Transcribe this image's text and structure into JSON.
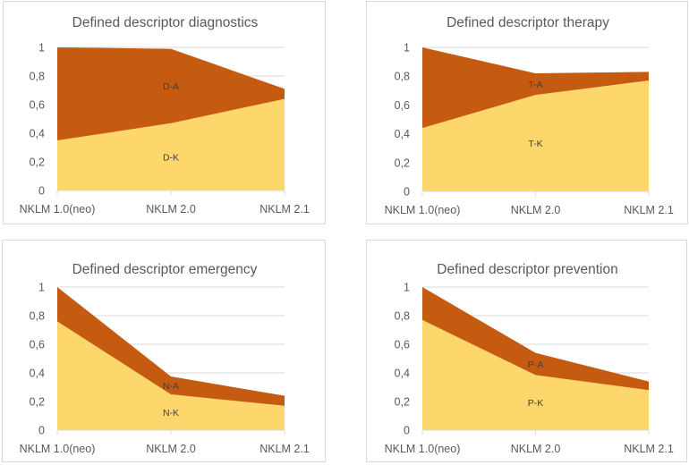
{
  "colors": {
    "lower": "#FDD76B",
    "upper": "#C55A11",
    "grid": "#D9D9D9",
    "text": "#595959"
  },
  "chart_data": [
    {
      "type": "area",
      "stacked": true,
      "title": "Defined descriptor diagnostics",
      "categories": [
        "NKLM 1.0(neo)",
        "NKLM 2.0",
        "NKLM 2.1"
      ],
      "ylim": [
        0,
        1
      ],
      "yticks": [
        "0",
        "0,2",
        "0,4",
        "0,6",
        "0,8",
        "1"
      ],
      "grid": true,
      "legend": "none",
      "series": [
        {
          "name": "D-K",
          "values": [
            0.35,
            0.47,
            0.64
          ]
        },
        {
          "name": "D-A",
          "values": [
            0.65,
            0.52,
            0.07
          ]
        }
      ]
    },
    {
      "type": "area",
      "stacked": true,
      "title": "Defined descriptor therapy",
      "categories": [
        "NKLM 1.0(neo)",
        "NKLM 2.0",
        "NKLM 2.1"
      ],
      "ylim": [
        0,
        1
      ],
      "yticks": [
        "0",
        "0,2",
        "0,4",
        "0,6",
        "0,8",
        "1"
      ],
      "grid": true,
      "legend": "none",
      "series": [
        {
          "name": "T-K",
          "values": [
            0.44,
            0.67,
            0.77
          ]
        },
        {
          "name": "T-A",
          "values": [
            0.56,
            0.15,
            0.06
          ]
        }
      ]
    },
    {
      "type": "area",
      "stacked": true,
      "title": "Defined descriptor emergency",
      "categories": [
        "NKLM 1.0(neo)",
        "NKLM 2.0",
        "NKLM 2.1"
      ],
      "ylim": [
        0,
        1
      ],
      "yticks": [
        "0",
        "0,2",
        "0,4",
        "0,6",
        "0,8",
        "1"
      ],
      "grid": true,
      "legend": "none",
      "series": [
        {
          "name": "N-K",
          "values": [
            0.76,
            0.25,
            0.17
          ]
        },
        {
          "name": "N-A",
          "values": [
            0.24,
            0.125,
            0.07
          ]
        }
      ]
    },
    {
      "type": "area",
      "stacked": true,
      "title": "Defined descriptor prevention",
      "categories": [
        "NKLM 1.0(neo)",
        "NKLM 2.0",
        "NKLM 2.1"
      ],
      "ylim": [
        0,
        1
      ],
      "yticks": [
        "0",
        "0,2",
        "0,4",
        "0,6",
        "0,8",
        "1"
      ],
      "grid": true,
      "legend": "none",
      "series": [
        {
          "name": "P-K",
          "values": [
            0.77,
            0.385,
            0.28
          ]
        },
        {
          "name": "P-A",
          "values": [
            0.23,
            0.155,
            0.06
          ]
        }
      ]
    }
  ]
}
